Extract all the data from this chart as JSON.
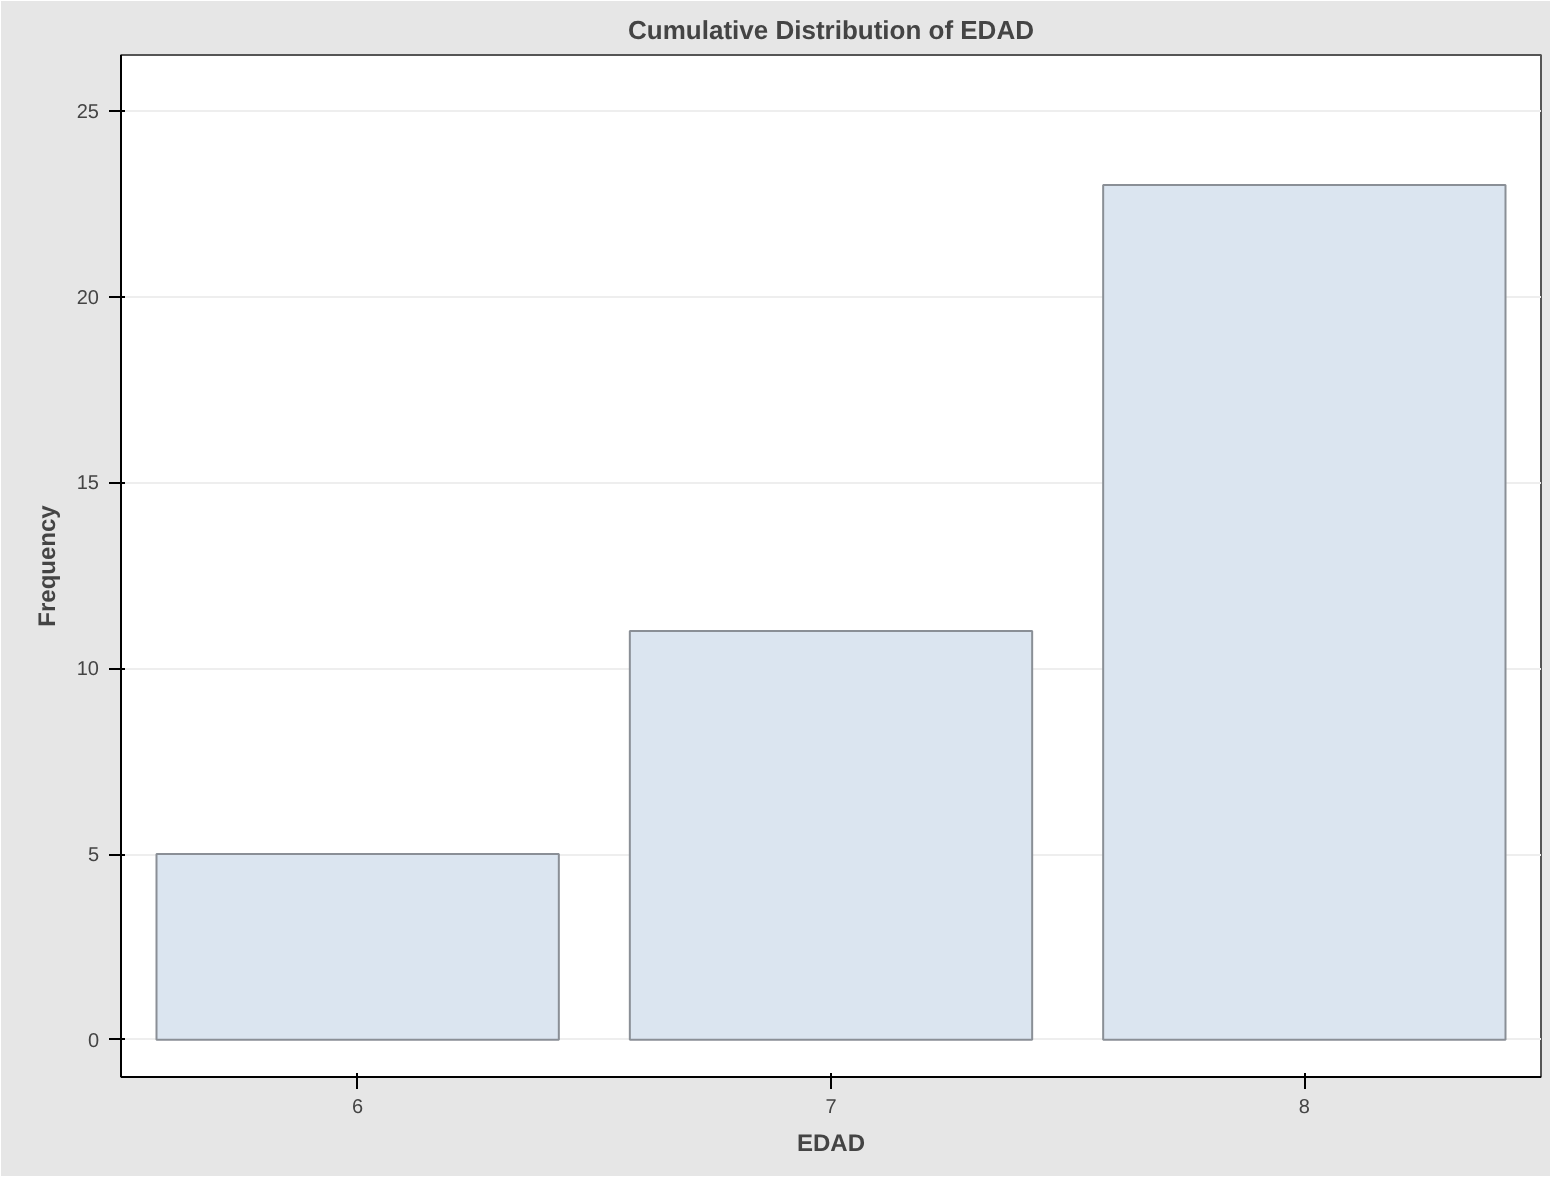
{
  "chart_data": {
    "type": "bar",
    "title": "Cumulative Distribution of EDAD",
    "xlabel": "EDAD",
    "ylabel": "Frequency",
    "categories": [
      "6",
      "7",
      "8"
    ],
    "values": [
      5,
      11,
      23
    ],
    "color": "#dbe5f0",
    "ylim": [
      -1,
      26.5
    ],
    "yticks": [
      0,
      5,
      10,
      15,
      20,
      25
    ],
    "grid": "y"
  }
}
